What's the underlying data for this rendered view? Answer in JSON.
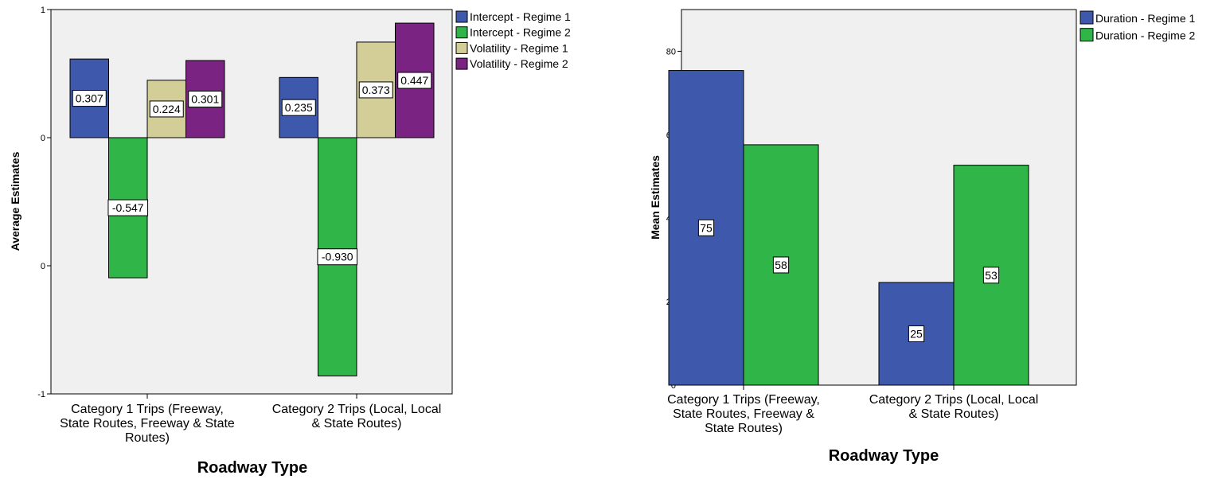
{
  "chart_data": [
    {
      "type": "bar",
      "categories": [
        "Category 1 Trips (Freeway, State Routes, Freeway & State Routes)",
        "Category 2 Trips (Local, Local & State Routes)"
      ],
      "category_lines": [
        [
          "Category 1 Trips (Freeway,",
          "State Routes, Freeway & State",
          "Routes)"
        ],
        [
          "Category 2 Trips (Local, Local",
          "& State Routes)"
        ]
      ],
      "series": [
        {
          "name": "Intercept - Regime 1",
          "color": "#3e58ac",
          "values": [
            0.307,
            0.235
          ],
          "labels": [
            "0.307",
            "0.235"
          ]
        },
        {
          "name": "Intercept - Regime 2",
          "color": "#2fb548",
          "values": [
            -0.547,
            -0.93
          ],
          "labels": [
            "-0.547",
            "-0.930"
          ]
        },
        {
          "name": "Volatility - Regime 1",
          "color": "#d3ce97",
          "values": [
            0.224,
            0.373
          ],
          "labels": [
            "0.224",
            "0.373"
          ]
        },
        {
          "name": "Volatility - Regime 2",
          "color": "#7a2382",
          "values": [
            0.301,
            0.447
          ],
          "labels": [
            "0.301",
            "0.447"
          ]
        }
      ],
      "xlabel": "Roadway Type",
      "ylabel": "Average Estimates",
      "ylim": [
        -1.0,
        0.5
      ],
      "yticks": [
        {
          "value": 0.5,
          "label": "1"
        },
        {
          "value": 0.0,
          "label": "0"
        },
        {
          "value": -0.5,
          "label": "0"
        },
        {
          "value": -1.0,
          "label": "-1"
        }
      ],
      "legend_position": "outside-right",
      "grid": false
    },
    {
      "type": "bar",
      "categories": [
        "Category 1 Trips (Freeway, State Routes, Freeway & State Routes)",
        "Category 2 Trips (Local, Local & State Routes)"
      ],
      "category_lines": [
        [
          "Category 1 Trips (Freeway,",
          "State Routes, Freeway &",
          "State Routes)"
        ],
        [
          "Category 2 Trips (Local, Local",
          "& State Routes)"
        ]
      ],
      "series": [
        {
          "name": "Duration - Regime 1",
          "color": "#3e58ac",
          "values": [
            75.4,
            24.6
          ],
          "labels": [
            "75",
            "25"
          ]
        },
        {
          "name": "Duration - Regime 2",
          "color": "#2fb548",
          "values": [
            57.6,
            52.7
          ],
          "labels": [
            "58",
            "53"
          ]
        }
      ],
      "xlabel": "Roadway Type",
      "ylabel": "Mean Estimates",
      "ylim": [
        0,
        90
      ],
      "yticks": [
        {
          "value": 0,
          "label": "0"
        },
        {
          "value": 20,
          "label": "20"
        },
        {
          "value": 40,
          "label": "40"
        },
        {
          "value": 60,
          "label": "60"
        },
        {
          "value": 80,
          "label": "80"
        }
      ],
      "legend_position": "outside-right",
      "grid": false
    }
  ]
}
